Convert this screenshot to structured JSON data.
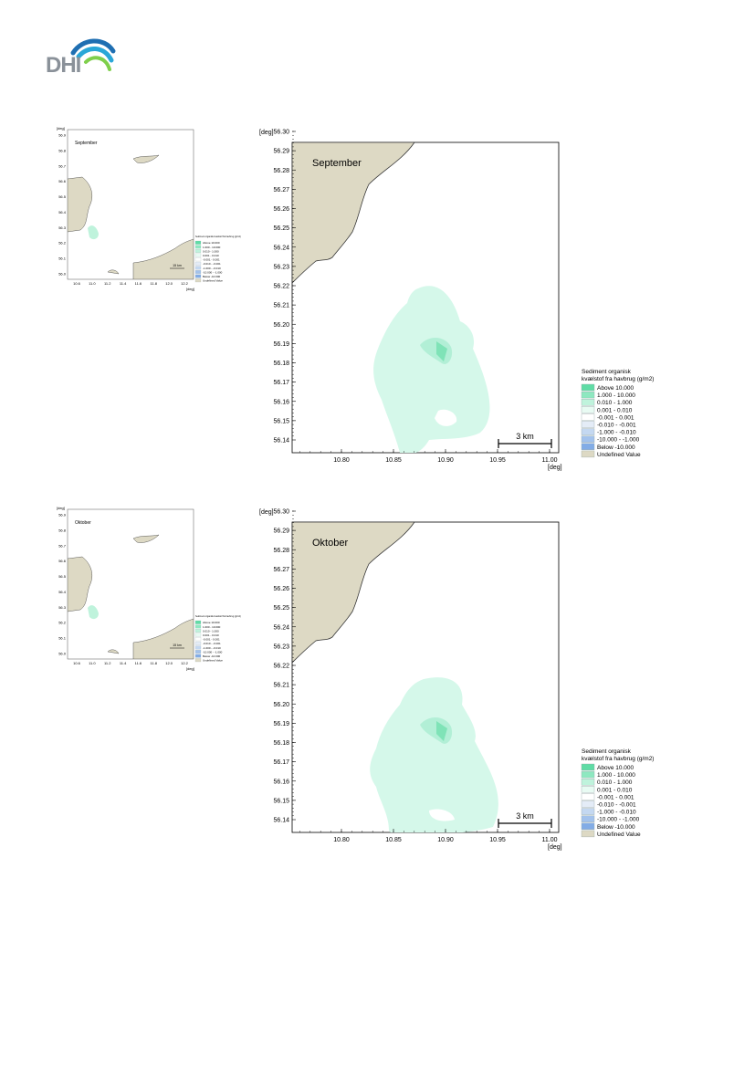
{
  "brand": {
    "name": "DHI",
    "colors": {
      "text": "#8a9199",
      "arc1": "#1f6fb2",
      "arc2": "#2aa7d8",
      "arc3": "#7fcf4c"
    }
  },
  "colors": {
    "land": "#ddd9c4",
    "plume_outer": "#d5f8ea",
    "plume_inner": "#b2efd6",
    "plume_core": "#7fe3b7"
  },
  "maps": [
    {
      "month_label": "September",
      "plume_variant": "sep",
      "unit_label": "[deg]",
      "scale_bar_label": "3 km",
      "y_ticks": [
        "56.30",
        "56.29",
        "56.28",
        "56.27",
        "56.26",
        "56.25",
        "56.24",
        "56.23",
        "56.22",
        "56.21",
        "56.20",
        "56.19",
        "56.18",
        "56.17",
        "56.16",
        "56.15",
        "56.14"
      ],
      "x_ticks": [
        "10.80",
        "10.85",
        "10.90",
        "10.95",
        "11.00"
      ],
      "legend": {
        "title_line1": "Sediment organisk",
        "title_line2": "kvælstof fra havbrug (g/m2)",
        "items": [
          {
            "label": "Above      10.000",
            "color": "#5fdca5"
          },
          {
            "label": "1.000 -  10.000",
            "color": "#8ee8c0"
          },
          {
            "label": "0.010 -    1.000",
            "color": "#bff3dc"
          },
          {
            "label": "0.001 -    0.010",
            "color": "#e8fbf3"
          },
          {
            "label": "-0.001 -    0.001",
            "color": "#ffffff"
          },
          {
            "label": "-0.010 -   -0.001",
            "color": "#e4ecf7"
          },
          {
            "label": "-1.000 -   -0.010",
            "color": "#c4d8f1"
          },
          {
            "label": "-10.000 -   -1.000",
            "color": "#a3c2ec"
          },
          {
            "label": "Below     -10.000",
            "color": "#82ace6"
          },
          {
            "label": "Undefined Value",
            "color": "#ddd9c4"
          }
        ]
      }
    },
    {
      "month_label": "Oktober",
      "plume_variant": "okt",
      "unit_label": "[deg]",
      "scale_bar_label": "3 km",
      "y_ticks": [
        "56.30",
        "56.29",
        "56.28",
        "56.27",
        "56.26",
        "56.25",
        "56.24",
        "56.23",
        "56.22",
        "56.21",
        "56.20",
        "56.19",
        "56.18",
        "56.17",
        "56.16",
        "56.15",
        "56.14"
      ],
      "x_ticks": [
        "10.80",
        "10.85",
        "10.90",
        "10.95",
        "11.00"
      ],
      "legend": {
        "title_line1": "Sediment organisk",
        "title_line2": "kvælstof fra havbrug (g/m2)",
        "items": [
          {
            "label": "Above      10.000",
            "color": "#5fdca5"
          },
          {
            "label": "1.000 -  10.000",
            "color": "#8ee8c0"
          },
          {
            "label": "0.010 -    1.000",
            "color": "#bff3dc"
          },
          {
            "label": "0.001 -    0.010",
            "color": "#e8fbf3"
          },
          {
            "label": "-0.001 -    0.001",
            "color": "#ffffff"
          },
          {
            "label": "-0.010 -   -0.001",
            "color": "#e4ecf7"
          },
          {
            "label": "-1.000 -   -0.010",
            "color": "#c4d8f1"
          },
          {
            "label": "-10.000 -   -1.000",
            "color": "#a3c2ec"
          },
          {
            "label": "Below     -10.000",
            "color": "#82ace6"
          },
          {
            "label": "Undefined Value",
            "color": "#ddd9c4"
          }
        ]
      }
    }
  ],
  "overview_maps": [
    {
      "month_label": "September",
      "unit_label": "[deg]",
      "scale_bar_label": "15 km",
      "y_ticks": [
        "56.9",
        "56.8",
        "56.7",
        "56.6",
        "56.5",
        "56.4",
        "56.3",
        "56.2",
        "56.1",
        "56.0"
      ],
      "x_ticks": [
        "10.6",
        "11.0",
        "11.2",
        "11.4",
        "11.6",
        "11.8",
        "12.0",
        "12.2"
      ],
      "legend_title": "Sediment organisk kvælstof fra havbrug (g/m2)"
    },
    {
      "month_label": "Oktober",
      "unit_label": "[deg]",
      "scale_bar_label": "15 km",
      "y_ticks": [
        "56.9",
        "56.8",
        "56.7",
        "56.6",
        "56.5",
        "56.4",
        "56.3",
        "56.2",
        "56.1",
        "56.0"
      ],
      "x_ticks": [
        "10.6",
        "11.0",
        "11.2",
        "11.4",
        "11.6",
        "11.8",
        "12.0",
        "12.2"
      ],
      "legend_title": "Sediment organisk kvælstof fra havbrug (g/m2)"
    }
  ]
}
